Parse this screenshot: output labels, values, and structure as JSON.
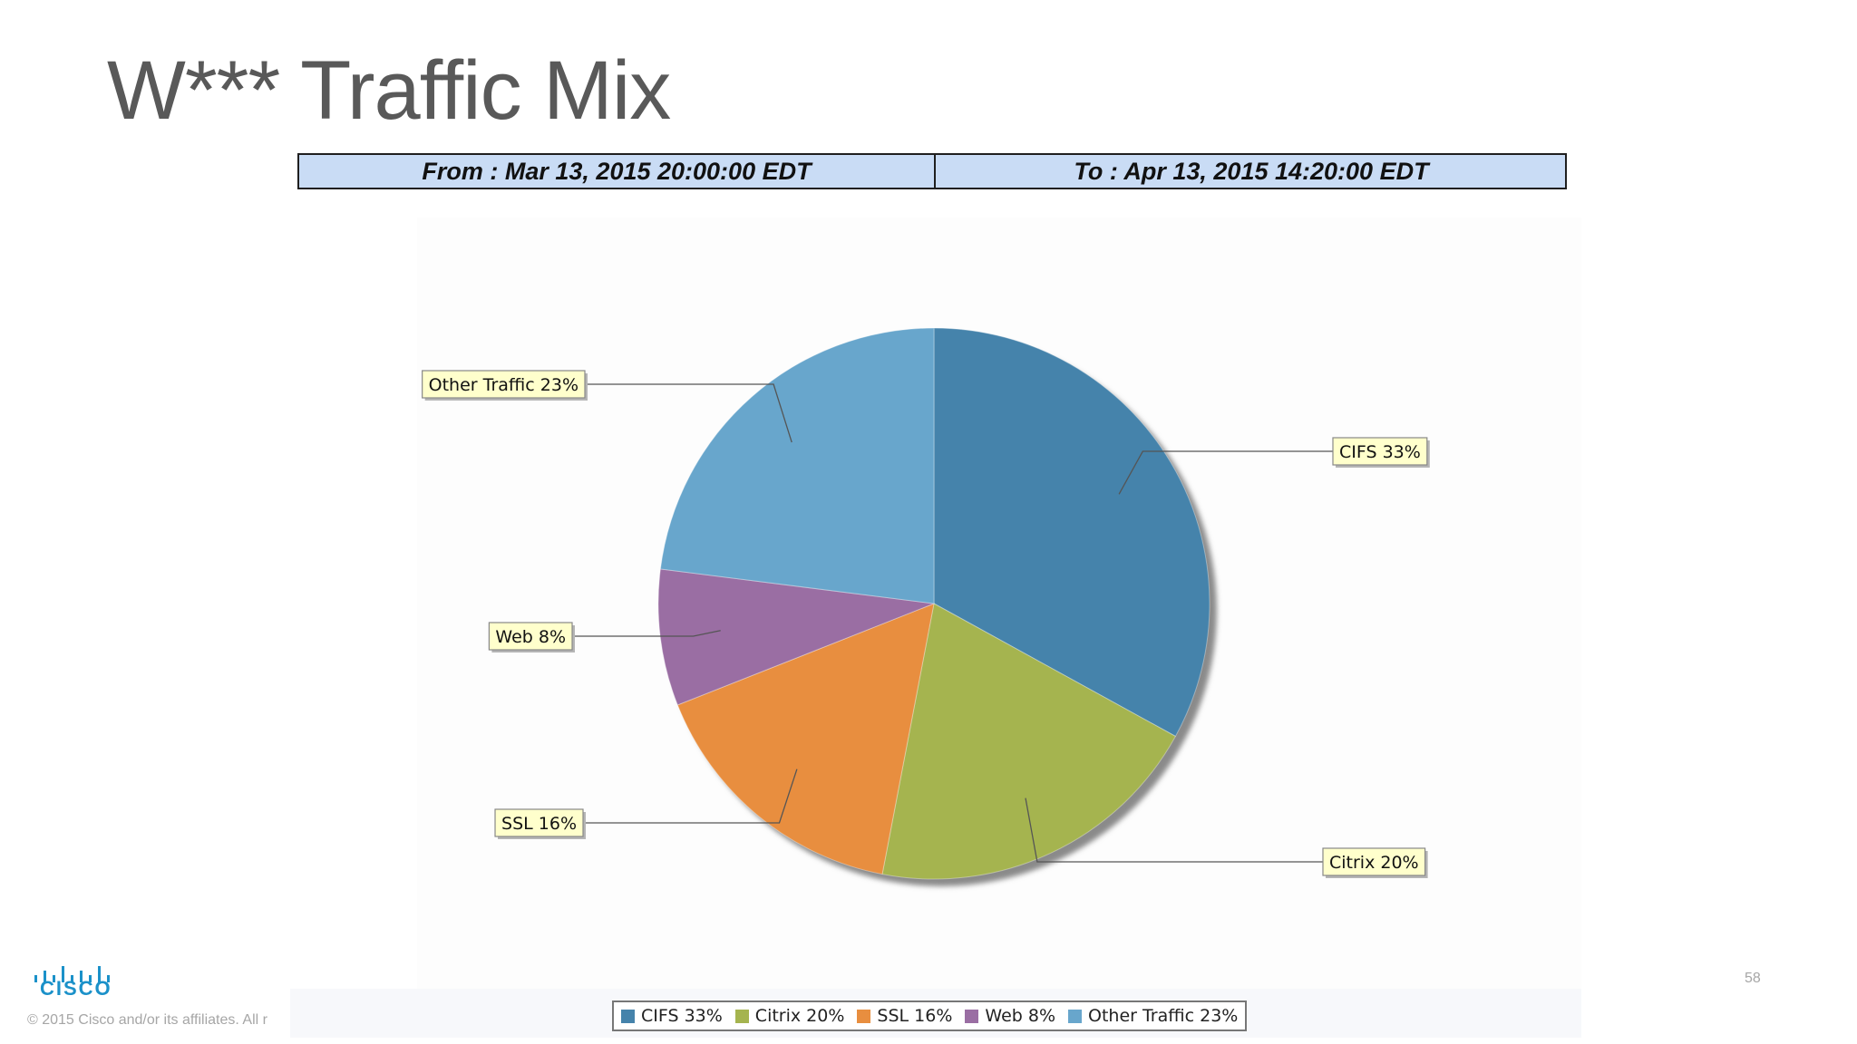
{
  "slide": {
    "title": "W*** Traffic Mix",
    "page_number": "58",
    "copyright": "© 2015  Cisco and/or its affiliates. All r",
    "logo_text": "CISCO"
  },
  "time_range": {
    "from": "From  :  Mar 13, 2015 20:00:00 EDT",
    "to": "To  :  Apr 13, 2015 14:20:00 EDT"
  },
  "chart_data": {
    "type": "pie",
    "slices": [
      {
        "name": "CIFS",
        "value": 33,
        "label": "CIFS 33%",
        "color": "#4583ab"
      },
      {
        "name": "Citrix",
        "value": 20,
        "label": "Citrix 20%",
        "color": "#a5b44f"
      },
      {
        "name": "SSL",
        "value": 16,
        "label": "SSL 16%",
        "color": "#e88e3f"
      },
      {
        "name": "Web",
        "value": 8,
        "label": "Web 8%",
        "color": "#9a6ea3"
      },
      {
        "name": "Other Traffic",
        "value": 23,
        "label": "Other Traffic 23%",
        "color": "#68a6cc"
      }
    ],
    "legend_position": "bottom"
  }
}
